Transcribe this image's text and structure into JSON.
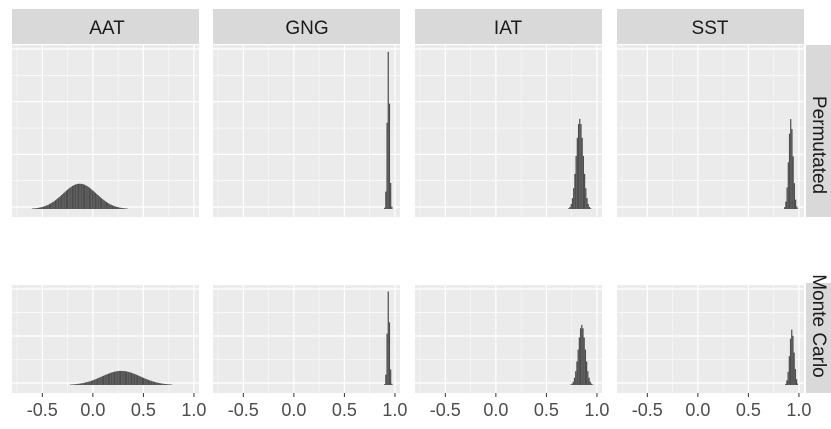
{
  "chart_data": {
    "type": "histogram-facet-grid",
    "columns": [
      "AAT",
      "GNG",
      "IAT",
      "SST"
    ],
    "rows": [
      "Permutated",
      "Monte Carlo"
    ],
    "x_ticks": [
      "-0.5",
      "0.0",
      "0.5",
      "1.0"
    ],
    "x_tick_values": [
      -0.5,
      0.0,
      0.5,
      1.0
    ],
    "xlim": [
      -0.8,
      1.05
    ],
    "grid": true,
    "y_axis_labels_shown": false,
    "colors": {
      "panel_background": "#ebebeb",
      "grid": "#ffffff",
      "strip": "#d9d9d9",
      "bars": "#4d4d4d"
    },
    "panels": [
      {
        "column": "AAT",
        "row": "Permutated",
        "center": -0.13,
        "sd": 0.165,
        "peak": 0.16
      },
      {
        "column": "GNG",
        "row": "Permutated",
        "center": 0.935,
        "sd": 0.012,
        "peak": 1.0
      },
      {
        "column": "IAT",
        "row": "Permutated",
        "center": 0.83,
        "sd": 0.035,
        "peak": 0.57
      },
      {
        "column": "SST",
        "row": "Permutated",
        "center": 0.92,
        "sd": 0.022,
        "peak": 0.57
      },
      {
        "column": "AAT",
        "row": "Monte Carlo",
        "center": 0.28,
        "sd": 0.19,
        "peak": 0.15
      },
      {
        "column": "GNG",
        "row": "Monte Carlo",
        "center": 0.935,
        "sd": 0.012,
        "peak": 1.0
      },
      {
        "column": "IAT",
        "row": "Monte Carlo",
        "center": 0.85,
        "sd": 0.035,
        "peak": 0.64
      },
      {
        "column": "SST",
        "row": "Monte Carlo",
        "center": 0.93,
        "sd": 0.022,
        "peak": 0.59
      }
    ]
  }
}
